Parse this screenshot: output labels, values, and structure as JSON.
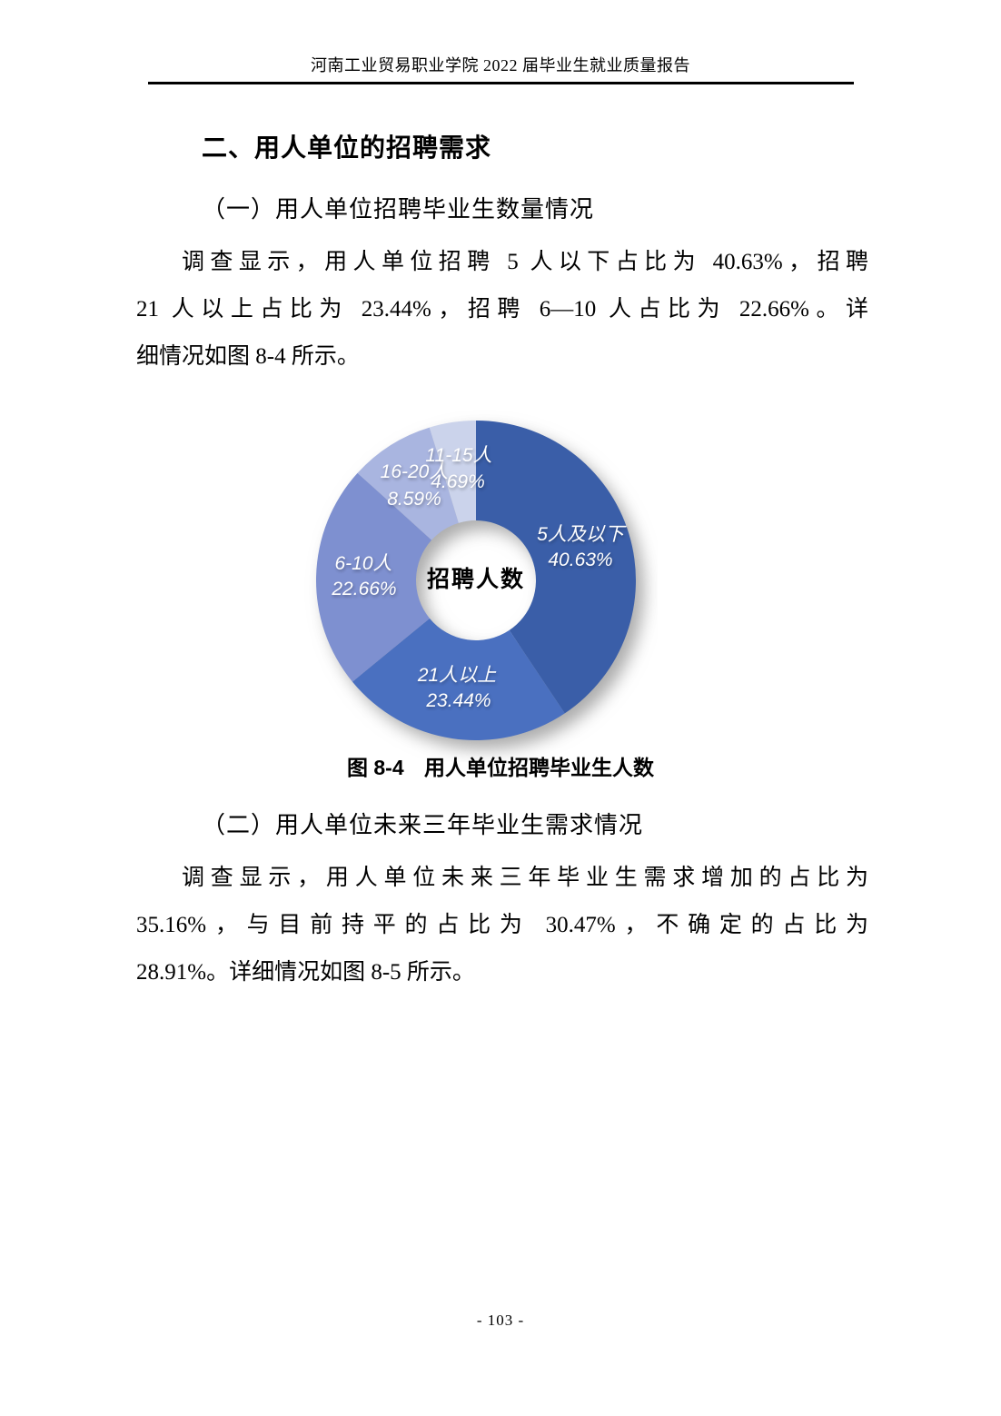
{
  "header": {
    "title": "河南工业贸易职业学院 2022 届毕业生就业质量报告"
  },
  "content": {
    "section_heading": "二、用人单位的招聘需求",
    "sub1_heading": "（一）用人单位招聘毕业生数量情况",
    "para1_lines": [
      "调查显示，用人单位招聘 5 人以下占比为 40.63%，招聘",
      "21 人以上占比为 23.44%，招聘 6—10 人占比为 22.66%。详",
      "细情况如图 8-4 所示。"
    ],
    "figure": {
      "label": "图 8-4",
      "title": "用人单位招聘毕业生人数"
    },
    "sub2_heading": "（二）用人单位未来三年毕业生需求情况",
    "para2_lines": [
      "调查显示，用人单位未来三年毕业生需求增加的占比为",
      "35.16%，与目前持平的占比为 30.47%，不确定的占比为",
      "28.91%。详细情况如图 8-5 所示。"
    ]
  },
  "footer": {
    "page_number": "- 103 -"
  },
  "chart_data": {
    "type": "pie",
    "subtype": "donut",
    "title": "招聘人数",
    "center_label": "招聘人数",
    "categories": [
      "5人及以下",
      "21人以上",
      "6-10人",
      "16-20人",
      "11-15人"
    ],
    "values": [
      40.63,
      23.44,
      22.66,
      8.59,
      4.69
    ],
    "slices": [
      {
        "label": "5人及以下",
        "pct": "40.63%",
        "value": 40.63,
        "color": "#3A5EA8"
      },
      {
        "label": "21人以上",
        "pct": "23.44%",
        "value": 23.44,
        "color": "#4A70C0"
      },
      {
        "label": "6-10人",
        "pct": "22.66%",
        "value": 22.66,
        "color": "#7E90D0"
      },
      {
        "label": "16-20人",
        "pct": "8.59%",
        "value": 8.59,
        "color": "#A9B5E0"
      },
      {
        "label": "11-15人",
        "pct": "4.69%",
        "value": 4.69,
        "color": "#CBD3EB"
      }
    ],
    "start_angle_deg": 0,
    "direction": "clockwise",
    "labels_on_slices": true,
    "legend_position": "none",
    "label_text_color": "#ffffff"
  }
}
